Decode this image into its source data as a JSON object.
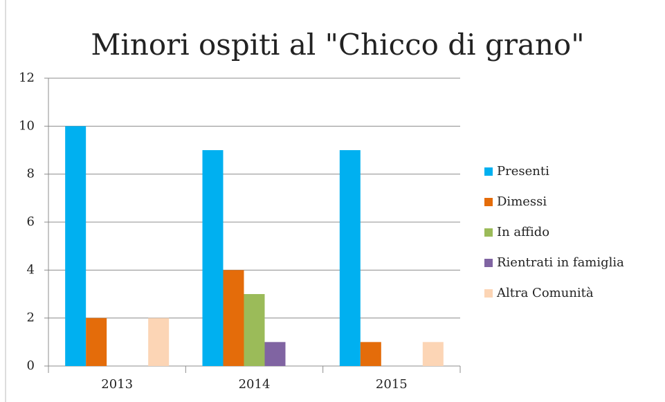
{
  "chart_data": {
    "type": "bar",
    "title": "Minori ospiti al \"Chicco di grano\"",
    "categories": [
      "2013",
      "2014",
      "2015"
    ],
    "series": [
      {
        "name": "Presenti",
        "color": "#00b0f0",
        "values": [
          10,
          9,
          9
        ]
      },
      {
        "name": "Dimessi",
        "color": "#e46c0a",
        "values": [
          2,
          4,
          1
        ]
      },
      {
        "name": "In affido",
        "color": "#9bbb59",
        "values": [
          0,
          3,
          0
        ]
      },
      {
        "name": "Rientrati in famiglia",
        "color": "#8064a2",
        "values": [
          0,
          1,
          0
        ]
      },
      {
        "name": "Altra Comunità",
        "color": "#fcd5b5",
        "values": [
          2,
          0,
          1
        ]
      }
    ],
    "ylim": [
      0,
      12
    ],
    "yticks": [
      0,
      2,
      4,
      6,
      8,
      10,
      12
    ],
    "grid": true,
    "legend": "right"
  }
}
